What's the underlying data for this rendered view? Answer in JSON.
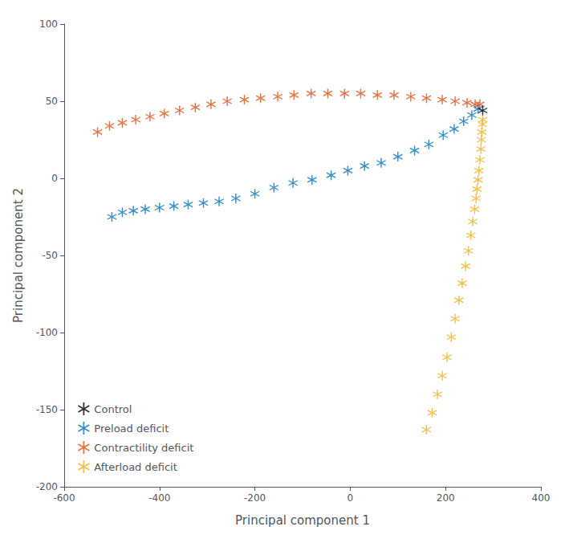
{
  "chart_data": {
    "type": "scatter",
    "xlabel": "Principal component 1",
    "ylabel": "Principal component 2",
    "xlim": [
      -600,
      400
    ],
    "ylim": [
      -200,
      100
    ],
    "xticks": [
      -600,
      -400,
      -200,
      0,
      200,
      400
    ],
    "yticks": [
      -200,
      -150,
      -100,
      -50,
      0,
      50,
      100
    ],
    "grid": false,
    "legend": "lower left",
    "marker": "asterisk",
    "series": [
      {
        "name": "Control",
        "color": "#000000",
        "x": [
          278
        ],
        "y": [
          44
        ]
      },
      {
        "name": "Preload deficit",
        "color": "#0072bd",
        "x": [
          -500,
          -478,
          -455,
          -430,
          -400,
          -370,
          -340,
          -308,
          -275,
          -240,
          -200,
          -160,
          -120,
          -80,
          -40,
          -5,
          30,
          65,
          100,
          135,
          165,
          195,
          218,
          238,
          255,
          268
        ],
        "y": [
          -25,
          -22,
          -21,
          -20,
          -19,
          -18,
          -17,
          -16,
          -15,
          -13,
          -10,
          -6,
          -3,
          -1,
          2,
          5,
          8,
          10,
          14,
          18,
          22,
          28,
          32,
          37,
          41,
          45
        ]
      },
      {
        "name": "Contractility deficit",
        "color": "#d95319",
        "x": [
          -530,
          -505,
          -478,
          -450,
          -420,
          -390,
          -358,
          -325,
          -292,
          -258,
          -222,
          -188,
          -152,
          -118,
          -82,
          -47,
          -12,
          22,
          57,
          92,
          127,
          160,
          193,
          220,
          245,
          262,
          272
        ],
        "y": [
          30,
          34,
          36,
          38,
          40,
          42,
          44,
          46,
          48,
          50,
          51,
          52,
          53,
          54,
          55,
          55,
          55,
          55,
          54,
          54,
          53,
          52,
          51,
          50,
          49,
          48,
          48
        ]
      },
      {
        "name": "Afterload deficit",
        "color": "#edb120",
        "x": [
          160,
          172,
          183,
          193,
          203,
          212,
          220,
          228,
          235,
          242,
          248,
          253,
          257,
          261,
          264,
          266,
          268,
          270,
          272,
          274,
          275,
          276,
          277,
          278
        ],
        "y": [
          -163,
          -152,
          -140,
          -128,
          -116,
          -103,
          -91,
          -79,
          -68,
          -57,
          -47,
          -37,
          -28,
          -20,
          -13,
          -7,
          -1,
          5,
          12,
          19,
          25,
          30,
          35,
          38
        ]
      }
    ]
  }
}
